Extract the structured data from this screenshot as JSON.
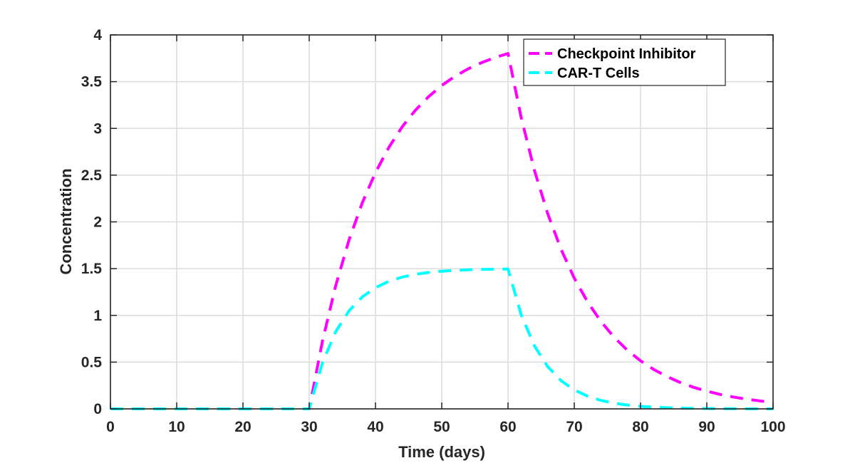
{
  "chart_data": {
    "type": "line",
    "title": "",
    "xlabel": "Time (days)",
    "ylabel": "Concentration",
    "xlim": [
      0,
      100
    ],
    "ylim": [
      0,
      4
    ],
    "xticks": [
      0,
      10,
      20,
      30,
      40,
      50,
      60,
      70,
      80,
      90,
      100
    ],
    "yticks": [
      0,
      0.5,
      1,
      1.5,
      2,
      2.5,
      3,
      3.5,
      4
    ],
    "ytick_labels": [
      "0",
      "0.5",
      "1",
      "1.5",
      "2",
      "2.5",
      "3",
      "3.5",
      "4"
    ],
    "grid": true,
    "legend_placement": "top-right",
    "x": [
      0,
      30,
      32,
      34,
      36,
      38,
      40,
      42,
      44,
      46,
      48,
      50,
      52,
      54,
      56,
      58,
      60,
      62,
      64,
      66,
      68,
      70,
      72,
      74,
      76,
      78,
      80,
      82,
      84,
      86,
      88,
      90,
      92,
      94,
      96,
      98,
      100
    ],
    "series": [
      {
        "name": "Checkpoint Inhibitor",
        "color": "#ff00ff",
        "line_style": "dashed",
        "values": [
          0,
          0,
          0.725,
          1.319,
          1.805,
          2.203,
          2.528,
          2.795,
          3.014,
          3.192,
          3.339,
          3.459,
          3.557,
          3.637,
          3.703,
          3.757,
          3.801,
          3.112,
          2.548,
          2.086,
          1.708,
          1.398,
          1.145,
          0.937,
          0.767,
          0.628,
          0.514,
          0.421,
          0.345,
          0.282,
          0.231,
          0.189,
          0.155,
          0.127,
          0.104,
          0.085,
          0.07
        ]
      },
      {
        "name": "CAR-T Cells",
        "color": "#00ffff",
        "line_style": "dashed",
        "values": [
          0,
          0,
          0.495,
          0.826,
          1.048,
          1.197,
          1.297,
          1.364,
          1.409,
          1.439,
          1.459,
          1.473,
          1.482,
          1.488,
          1.492,
          1.494,
          1.496,
          1.003,
          0.672,
          0.451,
          0.302,
          0.202,
          0.136,
          0.091,
          0.061,
          0.041,
          0.027,
          0.018,
          0.012,
          0.008,
          0.006,
          0.004,
          0.002,
          0.002,
          0.001,
          0.001,
          0.0
        ]
      }
    ]
  }
}
